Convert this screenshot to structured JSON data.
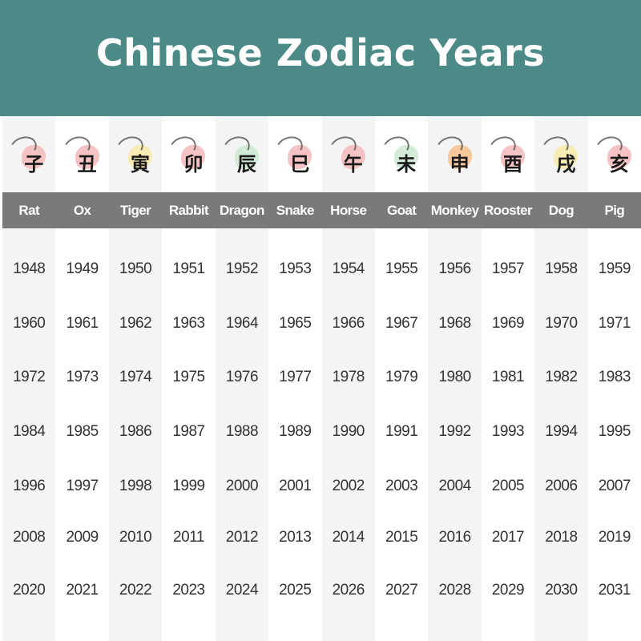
{
  "title": "Chinese Zodiac Years",
  "colors": {
    "header": "#4b8a87",
    "label_band": "#7a7a7a"
  },
  "animals": [
    {
      "name": "Rat",
      "glyph": "子",
      "blob": "#f3b8b8",
      "years": [
        "1948",
        "1960",
        "1972",
        "1984",
        "1996",
        "2008",
        "2020"
      ]
    },
    {
      "name": "Ox",
      "glyph": "丑",
      "blob": "#f3b8b8",
      "years": [
        "1949",
        "1961",
        "1973",
        "1985",
        "1997",
        "2009",
        "2021"
      ]
    },
    {
      "name": "Tiger",
      "glyph": "寅",
      "blob": "#f6eaa8",
      "years": [
        "1950",
        "1962",
        "1974",
        "1986",
        "1998",
        "2010",
        "2022"
      ]
    },
    {
      "name": "Rabbit",
      "glyph": "卯",
      "blob": "#f3b8b8",
      "years": [
        "1951",
        "1963",
        "1975",
        "1987",
        "1999",
        "2011",
        "2023"
      ]
    },
    {
      "name": "Dragon",
      "glyph": "辰",
      "blob": "#cde8d0",
      "years": [
        "1952",
        "1964",
        "1976",
        "1988",
        "2000",
        "2012",
        "2024"
      ]
    },
    {
      "name": "Snake",
      "glyph": "巳",
      "blob": "#f3b8b8",
      "years": [
        "1953",
        "1965",
        "1977",
        "1989",
        "2001",
        "2013",
        "2025"
      ]
    },
    {
      "name": "Horse",
      "glyph": "午",
      "blob": "#f3b8b8",
      "years": [
        "1954",
        "1966",
        "1978",
        "1990",
        "2002",
        "2014",
        "2026"
      ]
    },
    {
      "name": "Goat",
      "glyph": "未",
      "blob": "#cde8d0",
      "years": [
        "1955",
        "1967",
        "1979",
        "1991",
        "2003",
        "2015",
        "2027"
      ]
    },
    {
      "name": "Monkey",
      "glyph": "申",
      "blob": "#f7c08a",
      "years": [
        "1956",
        "1968",
        "1980",
        "1992",
        "2004",
        "2016",
        "2028"
      ]
    },
    {
      "name": "Rooster",
      "glyph": "酉",
      "blob": "#f3b8b8",
      "years": [
        "1957",
        "1969",
        "1981",
        "1993",
        "2005",
        "2017",
        "2029"
      ]
    },
    {
      "name": "Dog",
      "glyph": "戌",
      "blob": "#f6eaa8",
      "years": [
        "1958",
        "1970",
        "1982",
        "1994",
        "2006",
        "2018",
        "2030"
      ]
    },
    {
      "name": "Pig",
      "glyph": "亥",
      "blob": "#f3b8b8",
      "years": [
        "1959",
        "1971",
        "1983",
        "1995",
        "2007",
        "2019",
        "2031"
      ]
    }
  ]
}
